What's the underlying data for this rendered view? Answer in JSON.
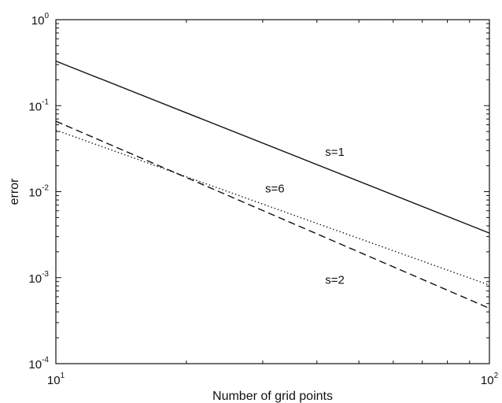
{
  "chart_data": {
    "type": "line",
    "title": "",
    "xlabel": "Number of grid points",
    "ylabel": "error",
    "xscale": "log",
    "yscale": "log",
    "xlim": [
      10,
      100
    ],
    "ylim": [
      0.0001,
      1
    ],
    "x_ticks": [
      {
        "base": "10",
        "exp": "1"
      },
      {
        "base": "10",
        "exp": "2"
      }
    ],
    "y_ticks": [
      {
        "base": "10",
        "exp": "-4"
      },
      {
        "base": "10",
        "exp": "-3"
      },
      {
        "base": "10",
        "exp": "-2"
      },
      {
        "base": "10",
        "exp": "-1"
      },
      {
        "base": "10",
        "exp": "0"
      }
    ],
    "grid": false,
    "series": [
      {
        "name": "s=1",
        "style": "solid",
        "color": "#111111",
        "x": [
          10,
          100
        ],
        "y": [
          0.33,
          0.0033
        ]
      },
      {
        "name": "s=2",
        "style": "dashed",
        "color": "#111111",
        "x": [
          10,
          100
        ],
        "y": [
          0.066,
          0.00044
        ]
      },
      {
        "name": "s=6",
        "style": "dotted",
        "color": "#111111",
        "x": [
          10,
          100
        ],
        "y": [
          0.052,
          0.00082
        ]
      }
    ],
    "annotations": [
      {
        "text": "s=1",
        "x": 44,
        "y": 0.026
      },
      {
        "text": "s=6",
        "x": 32,
        "y": 0.0098
      },
      {
        "text": "s=2",
        "x": 44,
        "y": 0.00085
      }
    ]
  }
}
